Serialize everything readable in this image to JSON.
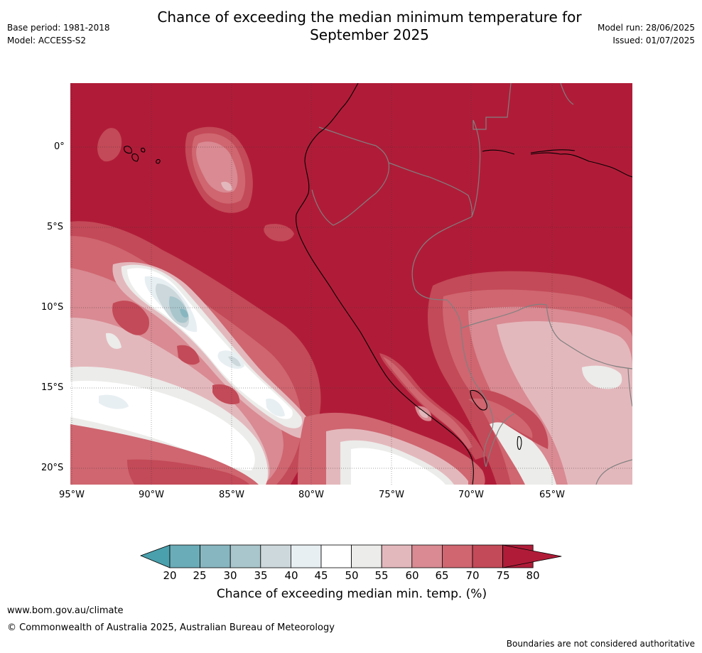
{
  "header": {
    "title_line1": "Chance of exceeding the median minimum temperature for",
    "title_line2": "September 2025",
    "base_period": "Base period: 1981-2018",
    "model": "Model: ACCESS-S2",
    "model_run": "Model run: 28/06/2025",
    "issued": "Issued: 01/07/2025"
  },
  "map": {
    "lat_labels": [
      "0°",
      "5°S",
      "10°S",
      "15°S",
      "20°S"
    ],
    "lon_labels": [
      "95°W",
      "90°W",
      "85°W",
      "80°W",
      "75°W",
      "70°W",
      "65°W"
    ],
    "colors": {
      "above80": "#b01c38",
      "c75": "#c34a58",
      "c70": "#cf6670",
      "c65": "#d98a92",
      "c60": "#e3b8bc",
      "c55": "#ececea",
      "c50": "#ffffff",
      "c45": "#e8eff2",
      "c40": "#cdd8dc",
      "c35": "#a9c6cc",
      "c30": "#88b6c0",
      "c25": "#6aacb7",
      "below20": "#4aa0ad",
      "country_border": "#808080",
      "coast": "#000000"
    }
  },
  "colorbar": {
    "ticks": [
      "20",
      "25",
      "30",
      "35",
      "40",
      "45",
      "50",
      "55",
      "60",
      "65",
      "70",
      "75",
      "80"
    ],
    "label": "Chance of exceeding median min. temp. (%)"
  },
  "footer": {
    "website": "www.bom.gov.au/climate",
    "copyright": "© Commonwealth of Australia 2025, Australian Bureau of Meteorology",
    "disclaimer": "Boundaries are not considered authoritative"
  }
}
